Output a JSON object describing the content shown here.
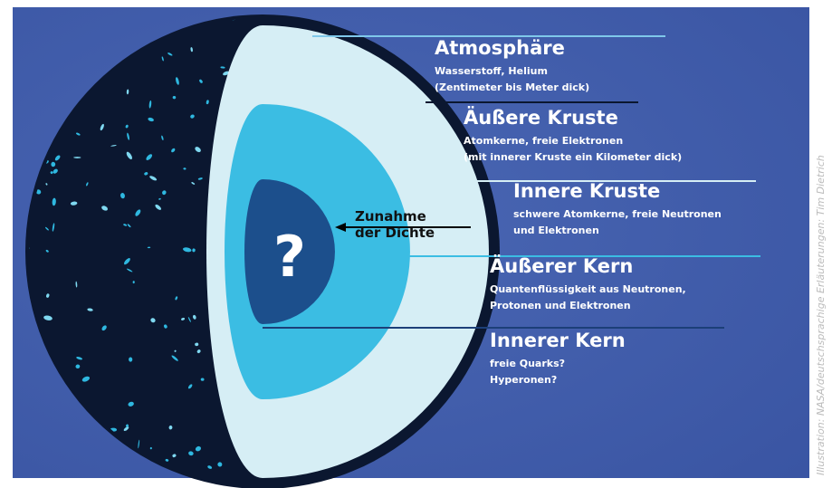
{
  "layers": [
    {
      "title": "Atmosphäre",
      "lines": [
        "Wasserstoff, Helium",
        "(Zentimeter bis Meter dick)"
      ]
    },
    {
      "title": "Äußere Kruste",
      "lines": [
        "Atomkerne, freie Elektronen",
        "(mit innerer Kruste ein Kilometer dick)"
      ]
    },
    {
      "title": "Innere Kruste",
      "lines": [
        "schwere Atomkerne, freie Neutronen",
        "und Elektronen"
      ]
    },
    {
      "title": "Äußerer Kern",
      "lines": [
        "Quantenflüssigkeit aus Neutronen,",
        "Protonen und Elektronen"
      ]
    },
    {
      "title": "Innerer Kern",
      "lines": [
        "freie Quarks?",
        "Hyperonen?"
      ]
    }
  ],
  "arrow_label": [
    "Zunahme",
    "der Dichte"
  ],
  "core_label": "?",
  "credit": "Illustration: NASA/deutschsprachige Erläuterungen: Tim Dietrich"
}
